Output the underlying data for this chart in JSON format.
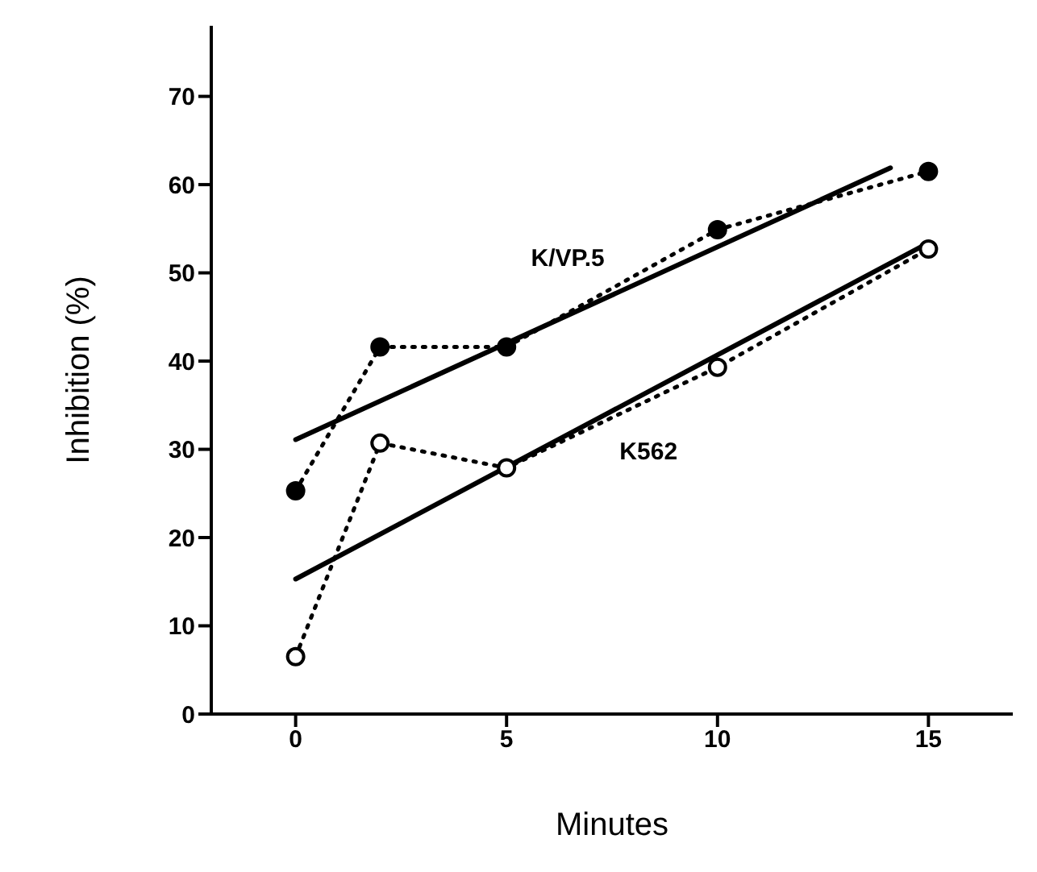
{
  "chart_data": {
    "type": "line",
    "xlabel": "Minutes",
    "ylabel": "Inhibition (%)",
    "xlim": [
      -2,
      17
    ],
    "xticks": [
      0,
      5,
      10,
      15
    ],
    "ylim": [
      0,
      78
    ],
    "yticks": [
      0,
      10,
      20,
      30,
      40,
      50,
      60,
      70
    ],
    "grid": false,
    "series": [
      {
        "name": "K/VP.5",
        "color": "#000000",
        "colors": [
          "#000000",
          "#000000",
          "#000000",
          "#000000",
          "#000000"
        ],
        "x": [
          0,
          2,
          5,
          10,
          15
        ],
        "values": [
          25.3,
          41.6,
          41.6,
          54.9,
          61.5
        ],
        "marker": "circle",
        "line_style": "dotted"
      },
      {
        "name": "K562",
        "color": "#000000",
        "colors": [
          "#ffffff",
          "#ffffff",
          "#ffffff",
          "#ffffff",
          "#ffffff"
        ],
        "x": [
          0,
          2,
          5,
          10,
          15
        ],
        "values": [
          6.5,
          30.7,
          27.9,
          39.3,
          52.7
        ],
        "marker": "circle",
        "line_style": "dotted"
      },
      {
        "type": "line",
        "color": "#000000",
        "x": [
          0,
          14.1
        ],
        "values": [
          31.1,
          61.9
        ],
        "marker": "none",
        "line_style": "solid"
      },
      {
        "type": "line",
        "color": "#000000",
        "x": [
          0,
          15
        ],
        "values": [
          15.3,
          53.4
        ],
        "marker": "none",
        "line_style": "solid"
      }
    ]
  }
}
